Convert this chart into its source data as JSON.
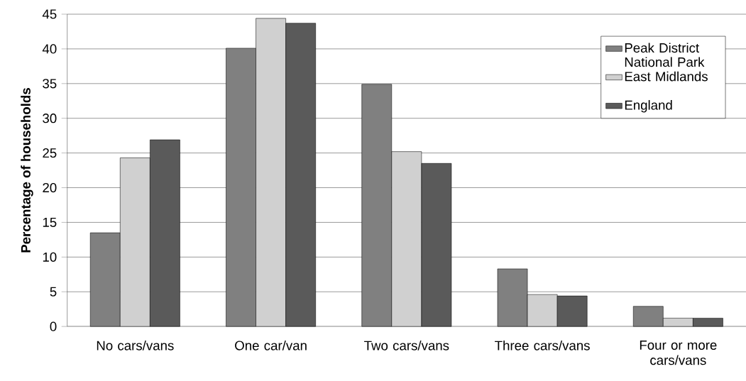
{
  "chart_data": {
    "type": "bar",
    "ylabel": "Percentage of households",
    "categories": [
      "No cars/vans",
      "One car/van",
      "Two cars/vans",
      "Three cars/vans",
      "Four or more cars/vans"
    ],
    "series": [
      {
        "name": "Peak District National Park",
        "color": "#808080",
        "values": [
          13.5,
          40.1,
          34.9,
          8.3,
          2.9
        ]
      },
      {
        "name": "East Midlands",
        "color": "#d0d0d0",
        "values": [
          24.3,
          44.4,
          25.2,
          4.6,
          1.2
        ]
      },
      {
        "name": "England",
        "color": "#5a5a5a",
        "values": [
          26.9,
          43.7,
          23.5,
          4.4,
          1.2
        ]
      }
    ],
    "ylim": [
      0,
      45
    ],
    "yticks": [
      0,
      5,
      10,
      15,
      20,
      25,
      30,
      35,
      40,
      45
    ],
    "grid": "y",
    "legend": "top right"
  }
}
